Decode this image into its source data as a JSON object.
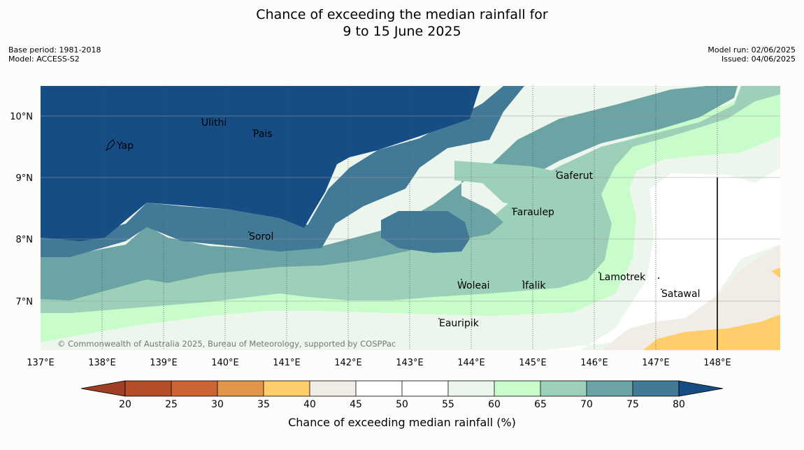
{
  "title_line1": "Chance of exceeding the median rainfall for",
  "title_line2": "9 to 15 June 2025",
  "meta_left": [
    "Base period: 1981-2018",
    "Model: ACCESS-S2"
  ],
  "meta_right": [
    "Model run: 02/06/2025",
    "Issued: 04/06/2025"
  ],
  "lon_ticks": [
    "137°E",
    "138°E",
    "139°E",
    "140°E",
    "141°E",
    "142°E",
    "143°E",
    "144°E",
    "145°E",
    "146°E",
    "147°E",
    "148°E"
  ],
  "lat_ticks": [
    "10°N",
    "9°N",
    "8°N",
    "7°N"
  ],
  "places": [
    {
      "name": "Ulithi"
    },
    {
      "name": "Pais"
    },
    {
      "name": "Yap"
    },
    {
      "name": "Gaferut"
    },
    {
      "name": "Faraulep"
    },
    {
      "name": "Sorol"
    },
    {
      "name": "Lamotrek"
    },
    {
      "name": "Woleai"
    },
    {
      "name": "Ifalik"
    },
    {
      "name": "Satawal"
    },
    {
      "name": "Eauripik"
    }
  ],
  "copyright": "© Commonwealth of Australia 2025, Bureau of Meteorology, supported by COSPPac",
  "colorbar": {
    "title": "Chance of exceeding median rainfall (%)",
    "ticks": [
      "20",
      "25",
      "30",
      "35",
      "40",
      "45",
      "50",
      "55",
      "60",
      "65",
      "70",
      "75",
      "80"
    ],
    "colors": {
      "below_20": "#a03f25",
      "20_25": "#b54e28",
      "25_30": "#cc6434",
      "30_35": "#e29448",
      "35_40": "#ffcd69",
      "40_45": "#f1ede6",
      "45_50": "#ffffff",
      "50_55": "#ffffff",
      "55_60": "#edf6ec",
      "60_65": "#c9fccb",
      "65_70": "#9dd0b8",
      "70_75": "#6ca3a4",
      "75_80": "#417997",
      "above_80": "#164d85"
    }
  }
}
